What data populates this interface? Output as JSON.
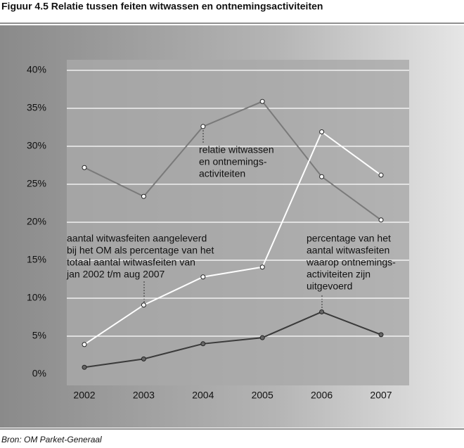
{
  "chart_data": {
    "type": "line",
    "title": "Figuur 4.5 Relatie tussen feiten witwassen en ontnemingsactiviteiten",
    "source": "Bron: OM Parket-Generaal",
    "categories": [
      "2002",
      "2003",
      "2004",
      "2005",
      "2006",
      "2007"
    ],
    "ylim": [
      0,
      40
    ],
    "yticks": [
      {
        "value": 0,
        "label": "0%"
      },
      {
        "value": 5,
        "label": "5%"
      },
      {
        "value": 10,
        "label": "10%"
      },
      {
        "value": 15,
        "label": "15%"
      },
      {
        "value": 20,
        "label": "20%"
      },
      {
        "value": 25,
        "label": "25%"
      },
      {
        "value": 30,
        "label": "30%"
      },
      {
        "value": 35,
        "label": "35%"
      },
      {
        "value": 40,
        "label": "40%"
      }
    ],
    "grid": true,
    "series": [
      {
        "name": [
          "relatie witwassen",
          "en ontnemings-",
          "activiteiten"
        ],
        "color": "#7a7a7a",
        "values": [
          27.2,
          23.4,
          32.6,
          35.9,
          26.0,
          20.3
        ]
      },
      {
        "name": [
          "aantal witwasfeiten aangeleverd",
          "bij het OM als percentage van het",
          "totaal aantal witwasfeiten van",
          "jan 2002 t/m aug 2007"
        ],
        "color": "#ffffff",
        "values": [
          3.9,
          9.1,
          12.8,
          14.1,
          31.9,
          26.2
        ]
      },
      {
        "name": [
          "percentage van het",
          "aantal witwasfeiten",
          "waarop ontnemings-",
          "activiteiten zijn",
          "uitgevoerd"
        ],
        "color": "#3a3a3a",
        "values": [
          0.9,
          2.0,
          4.0,
          4.8,
          8.2,
          5.2
        ]
      }
    ]
  }
}
